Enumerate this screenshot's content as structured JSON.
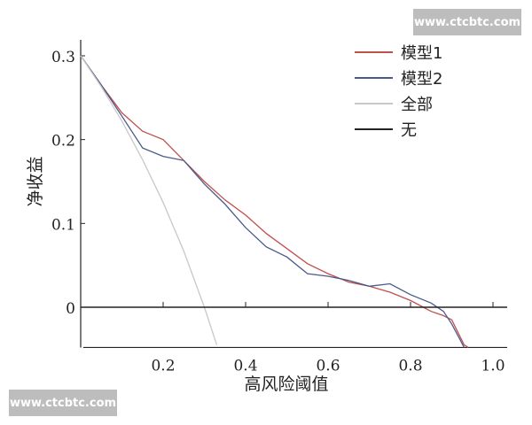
{
  "watermarks": {
    "top_right": "www.ctcbtc.com",
    "bottom_left": "www.ctcbtc.com"
  },
  "chart_data": {
    "type": "line",
    "title": "",
    "xlabel": "高风险阈值",
    "ylabel": "净收益",
    "xlim": [
      0,
      1.0
    ],
    "ylim": [
      -0.048,
      0.31
    ],
    "xticks": [
      0.2,
      0.4,
      0.6,
      0.8,
      1.0
    ],
    "xtick_labels": [
      "0.2",
      "0.4",
      "0.6",
      "0.8",
      "1.0"
    ],
    "yticks": [
      0,
      0.1,
      0.2,
      0.3
    ],
    "ytick_labels": [
      "0",
      "0.1",
      "0.2",
      "0.3"
    ],
    "grid": false,
    "legend_position": "top-right",
    "series": [
      {
        "name": "模型1",
        "color": "#c0504d",
        "x": [
          0,
          0.05,
          0.1,
          0.15,
          0.2,
          0.25,
          0.3,
          0.35,
          0.4,
          0.45,
          0.5,
          0.55,
          0.6,
          0.65,
          0.7,
          0.75,
          0.8,
          0.85,
          0.88,
          0.9,
          0.93,
          0.94
        ],
        "y": [
          0.3,
          0.265,
          0.232,
          0.21,
          0.2,
          0.175,
          0.15,
          0.128,
          0.11,
          0.088,
          0.07,
          0.052,
          0.04,
          0.03,
          0.025,
          0.018,
          0.008,
          -0.005,
          -0.01,
          -0.015,
          -0.045,
          -0.048
        ]
      },
      {
        "name": "模型2",
        "color": "#4a5a8a",
        "x": [
          0,
          0.05,
          0.1,
          0.15,
          0.2,
          0.25,
          0.3,
          0.35,
          0.4,
          0.45,
          0.5,
          0.55,
          0.6,
          0.65,
          0.7,
          0.75,
          0.8,
          0.85,
          0.88,
          0.9,
          0.93
        ],
        "y": [
          0.3,
          0.265,
          0.228,
          0.19,
          0.18,
          0.175,
          0.147,
          0.123,
          0.095,
          0.072,
          0.06,
          0.04,
          0.037,
          0.032,
          0.025,
          0.028,
          0.015,
          0.005,
          -0.005,
          -0.02,
          -0.048
        ]
      },
      {
        "name": "全部",
        "color": "#c8c8c8",
        "x": [
          0,
          0.05,
          0.1,
          0.15,
          0.2,
          0.25,
          0.3,
          0.33
        ],
        "y": [
          0.3,
          0.263,
          0.222,
          0.176,
          0.125,
          0.067,
          0.0,
          -0.045
        ]
      },
      {
        "name": "无",
        "color": "#222222",
        "x": [
          0,
          1.0
        ],
        "y": [
          0,
          0
        ]
      }
    ]
  }
}
